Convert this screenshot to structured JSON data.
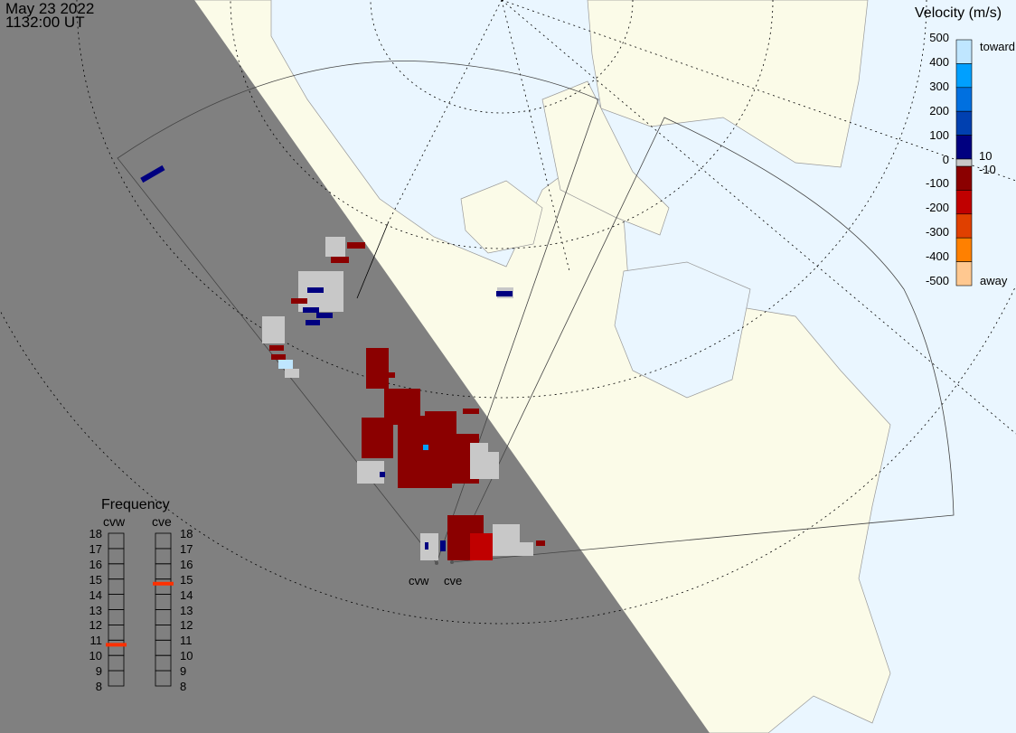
{
  "header": {
    "date": "May 23 2022",
    "time": "1132:00 UT"
  },
  "legend": {
    "title": "Velocity (m/s)",
    "ticks": [
      "500",
      "400",
      "300",
      "200",
      "100",
      "0",
      "-100",
      "-200",
      "-300",
      "-400",
      "-500"
    ],
    "toward": "toward",
    "away": "away",
    "gs_high": "10",
    "gs_low": "-10",
    "colors": [
      "#bfe6ff",
      "#00a0ff",
      "#0070e0",
      "#0040b0",
      "#000080",
      "#8b0000",
      "#c00000",
      "#e04000",
      "#ff8000",
      "#ffc890"
    ],
    "ground_scatter_color": "#c8c8c8"
  },
  "frequency": {
    "title": "Frequency",
    "radars": [
      {
        "name": "cvw",
        "value_mhz": 10.7
      },
      {
        "name": "cve",
        "value_mhz": 14.7
      }
    ],
    "ticks": [
      "18",
      "17",
      "16",
      "15",
      "14",
      "13",
      "12",
      "11",
      "10",
      "9",
      "8"
    ],
    "range": [
      8,
      18
    ],
    "marker_color": "#ff3000"
  },
  "radars": {
    "west": "cvw",
    "east": "cve"
  },
  "map": {
    "ocean_color": "#eaf6ff",
    "land_color": "#fbfbe8",
    "night_color": "#808080"
  }
}
